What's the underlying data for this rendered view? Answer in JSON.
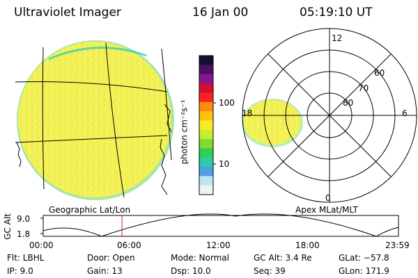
{
  "header": {
    "title": "Ultraviolet Imager",
    "date": "16 Jan 00",
    "time": "05:19:10 UT"
  },
  "colorbar": {
    "label": "photon cm⁻²s⁻¹",
    "tick_100": "100",
    "tick_10": "10",
    "colors": [
      "#111133",
      "#4b1060",
      "#8a1590",
      "#d01030",
      "#ff2020",
      "#ff8a10",
      "#ffc010",
      "#f4ee20",
      "#c8ec30",
      "#7edc30",
      "#30d050",
      "#30c8b0",
      "#50a0e0",
      "#bfe6ee",
      "#f0f4f4"
    ]
  },
  "panels": {
    "left_label": "Geographic Lat/Lon",
    "right_label": "Apex MLat/MLT"
  },
  "polar": {
    "mlt_12": "12",
    "mlt_18": "18",
    "mlt_6": "6",
    "mlt_0": "0",
    "lat_60": "60",
    "lat_70": "70",
    "lat_80": "80"
  },
  "altitude_plot": {
    "ylabel": "GC Alt",
    "ytick_top": "9.0",
    "ytick_bottom": "1.8",
    "xticks": [
      "00:00",
      "06:00",
      "12:00",
      "18:00",
      "23:59"
    ],
    "current_time_hours": 5.32,
    "marker_color": "#cc2020"
  },
  "info": {
    "filter": "Flt: LBHL",
    "door": "Door: Open",
    "mode": "Mode: Normal",
    "gc_alt": "GC Alt: 3.4 Re",
    "glat": "GLat: −57.8",
    "ip": "IP:  9.0",
    "gain": "Gain: 13",
    "dsp": "Dsp:    10.0",
    "seq": "Seq: 39",
    "glon": "GLon: 171.9"
  }
}
